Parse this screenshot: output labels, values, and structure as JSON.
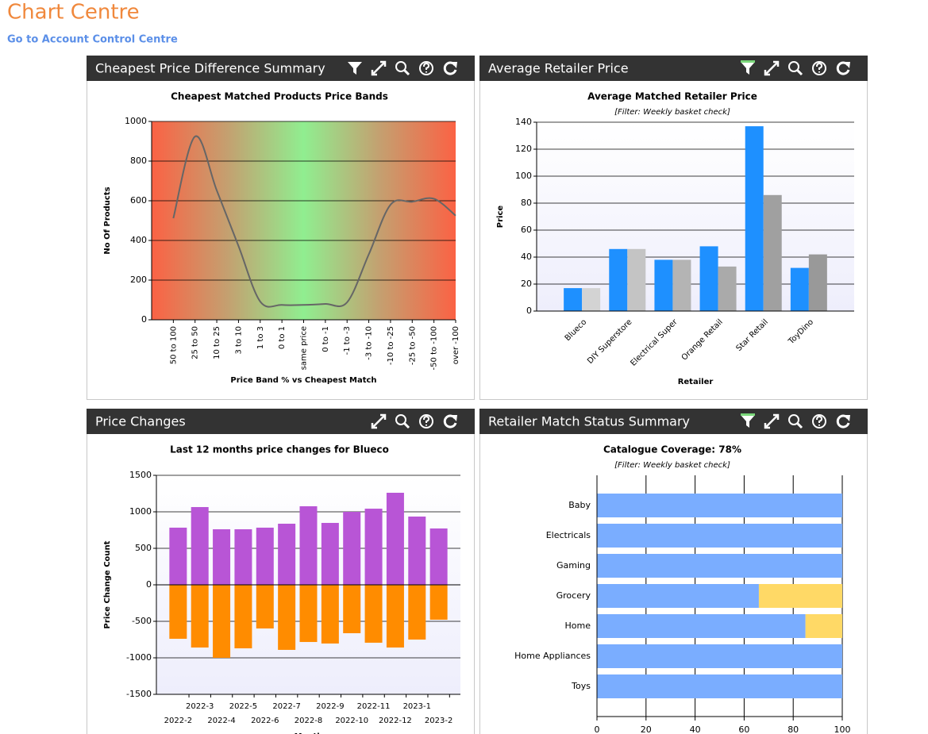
{
  "header": {
    "title": "Chart Centre",
    "link": "Go to Account Control Centre"
  },
  "chart_data": [
    {
      "type": "line",
      "panel_title": "Cheapest Price Difference Summary",
      "title": "Cheapest Matched Products Price Bands",
      "xlabel": "Price Band % vs Cheapest Match",
      "ylabel": "No Of Products",
      "categories": [
        "50 to 100",
        "25 to 50",
        "10 to 25",
        "3 to 10",
        "1 to 3",
        "0 to 1",
        "same price",
        "0 to -1",
        "-1 to -3",
        "-3 to -10",
        "-10 to -25",
        "-25 to -50",
        "-50 to -100",
        "over -100"
      ],
      "values": [
        512,
        924,
        652,
        372,
        92,
        75,
        75,
        80,
        88,
        330,
        580,
        595,
        610,
        525
      ],
      "color": "#666666",
      "ylim": [
        0,
        1000
      ],
      "yticks": [
        0,
        200,
        400,
        600,
        800,
        1000
      ],
      "grid": true
    },
    {
      "type": "bar",
      "panel_title": "Average Retailer Price",
      "title": "Average Matched Retailer Price",
      "subtitle": "[Filter: Weekly basket check]",
      "xlabel": "Retailer",
      "ylabel": "Price",
      "categories": [
        "Blueco",
        "DIY Superstore",
        "Electrical Super",
        "Orange Retail",
        "Star Retail",
        "ToyDino"
      ],
      "series": [
        {
          "color": "#1e90ff",
          "values": [
            17,
            46,
            38,
            48,
            137,
            32
          ]
        },
        {
          "colors": [
            "#d3d3d3",
            "#c4c4c4",
            "#b4b4b4",
            "#aaaaaa",
            "#a0a0a0",
            "#999999"
          ],
          "values": [
            17,
            46,
            38,
            33,
            86,
            42
          ]
        }
      ],
      "ylim": [
        0,
        140
      ],
      "yticks": [
        0,
        20,
        40,
        60,
        80,
        100,
        120,
        140
      ],
      "grid": true
    },
    {
      "type": "stacked_bar",
      "panel_title": "Price Changes",
      "title": "Last 12 months price changes for Blueco",
      "xlabel": "Month",
      "ylabel": "Price Change Count",
      "categories": [
        "2022-2",
        "2022-3",
        "2022-4",
        "2022-5",
        "2022-6",
        "2022-7",
        "2022-8",
        "2022-9",
        "2022-10",
        "2022-11",
        "2022-12",
        "2023-1",
        "2023-2"
      ],
      "series": [
        {
          "color": "#b855d6",
          "values": [
            783,
            1065,
            761,
            761,
            783,
            837,
            1076,
            848,
            1000,
            1043,
            1261,
            935,
            772
          ]
        },
        {
          "color": "#ff8c00",
          "values": [
            -739,
            -859,
            -1000,
            -870,
            -598,
            -891,
            -783,
            -804,
            -663,
            -793,
            -859,
            -750,
            -478
          ]
        }
      ],
      "ylim": [
        -1500,
        1500
      ],
      "yticks": [
        1500,
        1000,
        500,
        0,
        -500,
        -1000,
        -1500
      ],
      "grid": true
    },
    {
      "type": "hbar_stacked",
      "panel_title": "Retailer Match Status Summary",
      "title": "Catalogue Coverage: 78%",
      "subtitle": "[Filter: Weekly basket check]",
      "categories": [
        "Baby",
        "Electricals",
        "Gaming",
        "Grocery",
        "Home",
        "Home Appliances",
        "Toys"
      ],
      "series": [
        {
          "color": "#7aadff",
          "values": [
            100,
            100,
            100,
            66,
            85,
            100,
            100
          ]
        },
        {
          "color": "#ffd966",
          "values": [
            0,
            0,
            0,
            34,
            15,
            0,
            0
          ]
        }
      ],
      "xlim": [
        0,
        100
      ],
      "xticks": [
        0,
        20,
        40,
        60,
        80,
        100
      ],
      "grid": true
    }
  ]
}
